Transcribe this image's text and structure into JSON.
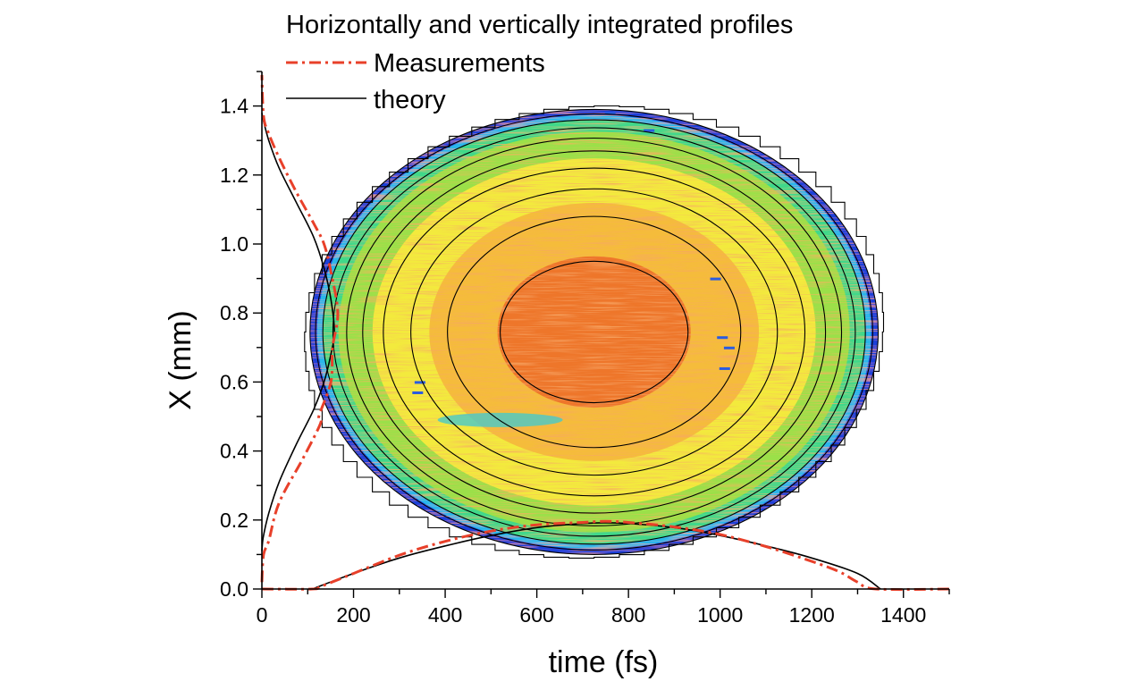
{
  "chart_data": {
    "type": "heatmap",
    "legend_title": "Horizontally and vertically integrated profiles",
    "legend": [
      {
        "name": "Measurements",
        "style": "dash-dot",
        "color": "#e8402a"
      },
      {
        "name": "theory",
        "style": "solid",
        "color": "#000000"
      }
    ],
    "xlabel": "time (fs)",
    "ylabel": "X (mm)",
    "xlim": [
      0,
      1500
    ],
    "ylim": [
      0,
      1.5
    ],
    "xticks": [
      "0",
      "200",
      "400",
      "600",
      "800",
      "1000",
      "1200",
      "1400"
    ],
    "xtick_values": [
      0,
      200,
      400,
      600,
      800,
      1000,
      1200,
      1400
    ],
    "yticks": [
      "0.0",
      "0.2",
      "0.4",
      "0.6",
      "0.8",
      "1.0",
      "1.2",
      "1.4"
    ],
    "ytick_values": [
      0,
      0.2,
      0.4,
      0.6,
      0.8,
      1.0,
      1.2,
      1.4
    ],
    "grid": false,
    "legend_position": "top",
    "heatmap": {
      "center": {
        "t": 725,
        "x": 0.745
      },
      "half_width": {
        "t": 620,
        "x": 0.645
      },
      "colormap": [
        "#1a3fd8",
        "#29b6ea",
        "#3fd88a",
        "#9be048",
        "#f3ea3e",
        "#f4b43a",
        "#ec6a2a"
      ]
    },
    "theory_contours": [
      {
        "t_halfwidth": 205,
        "x_halfwidth": 0.205
      },
      {
        "t_halfwidth": 320,
        "x_halfwidth": 0.335
      },
      {
        "t_halfwidth": 400,
        "x_halfwidth": 0.415
      },
      {
        "t_halfwidth": 460,
        "x_halfwidth": 0.475
      },
      {
        "t_halfwidth": 505,
        "x_halfwidth": 0.525
      },
      {
        "t_halfwidth": 540,
        "x_halfwidth": 0.562
      },
      {
        "t_halfwidth": 570,
        "x_halfwidth": 0.592
      },
      {
        "t_halfwidth": 592,
        "x_halfwidth": 0.615
      },
      {
        "t_halfwidth": 608,
        "x_halfwidth": 0.632
      },
      {
        "t_halfwidth": 620,
        "x_halfwidth": 0.645
      }
    ],
    "series": [
      {
        "name": "theory",
        "profile": "time",
        "x": [
          110,
          200,
          300,
          400,
          500,
          600,
          700,
          750,
          800,
          900,
          1000,
          1100,
          1200,
          1300,
          1350
        ],
        "y": [
          0.0,
          0.045,
          0.09,
          0.125,
          0.155,
          0.178,
          0.19,
          0.192,
          0.19,
          0.178,
          0.155,
          0.125,
          0.09,
          0.045,
          0.0
        ]
      },
      {
        "name": "Measurements",
        "profile": "time",
        "x": [
          0,
          110,
          130,
          200,
          300,
          400,
          500,
          600,
          700,
          750,
          800,
          900,
          1000,
          1100,
          1200,
          1260,
          1300,
          1340,
          1500
        ],
        "y": [
          0.0,
          0.0,
          0.008,
          0.045,
          0.098,
          0.138,
          0.168,
          0.186,
          0.193,
          0.196,
          0.193,
          0.18,
          0.158,
          0.123,
          0.08,
          0.05,
          0.02,
          0.0,
          0.0
        ]
      },
      {
        "name": "theory",
        "profile": "X",
        "x": [
          0.0,
          0.004,
          0.02,
          0.05,
          0.1,
          0.15,
          0.18,
          0.2,
          0.21,
          0.2,
          0.18,
          0.15,
          0.1,
          0.05,
          0.02,
          0.004,
          0.0
        ],
        "y": [
          0.11,
          0.15,
          0.22,
          0.31,
          0.42,
          0.52,
          0.6,
          0.68,
          0.745,
          0.84,
          0.93,
          1.02,
          1.12,
          1.22,
          1.3,
          1.36,
          1.38
        ]
      },
      {
        "name": "Measurements",
        "profile": "X",
        "x": [
          0.0,
          0.005,
          0.02,
          0.05,
          0.12,
          0.17,
          0.165,
          0.2,
          0.205,
          0.22,
          0.2,
          0.18,
          0.15,
          0.1,
          0.05,
          0.02,
          0.005,
          0.0
        ],
        "y": [
          0.02,
          0.1,
          0.14,
          0.25,
          0.38,
          0.48,
          0.5,
          0.6,
          0.7,
          0.8,
          0.92,
          1.0,
          1.06,
          1.15,
          1.25,
          1.32,
          1.37,
          1.49
        ]
      }
    ]
  }
}
